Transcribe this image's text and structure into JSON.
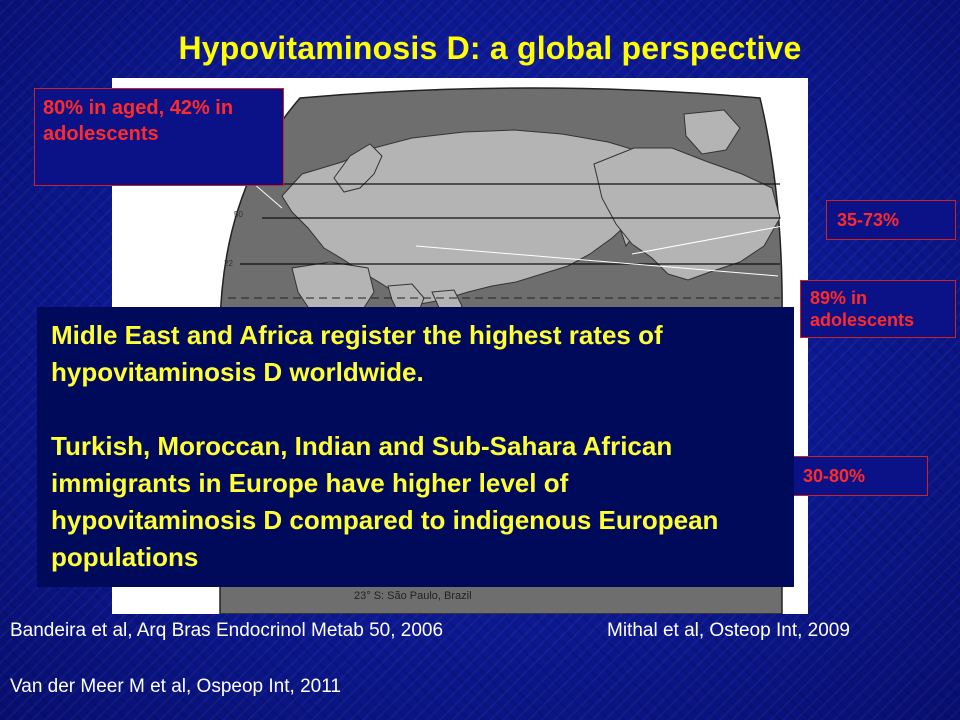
{
  "slide": {
    "title": "Hypovitaminosis D: a global perspective"
  },
  "map": {
    "latitude_labels": [
      "50",
      "22"
    ],
    "caption": "23° S: São Paulo, Brazil"
  },
  "stat_boxes": {
    "aged": "80% in aged, 42% in adolescents",
    "range_35_73": "35-73%",
    "adolescents_89": "89% in adolescents",
    "range_30_80": "30-80%"
  },
  "info": {
    "paragraph_1": "Midle East and Africa register the highest rates of hypovitaminosis D worldwide.",
    "paragraph_2": "Turkish, Moroccan, Indian and Sub-Sahara African immigrants in Europe have higher level of hypovitaminosis D compared to indigenous European populations"
  },
  "references": {
    "ref_1": "Bandeira et al, Arq Bras Endocrinol Metab 50, 2006",
    "ref_2": "Mithal et al, Osteop Int, 2009",
    "ref_3": "Van der Meer M et al, Ospeop Int, 2011"
  },
  "colors": {
    "background": "#0a148c",
    "title": "#ffff00",
    "stat_text": "#ff2a2a",
    "info_text": "#ffff33",
    "info_background": "#000a5a",
    "map_ocean": "#6e6e6e",
    "map_land": "#b4b4b4"
  }
}
